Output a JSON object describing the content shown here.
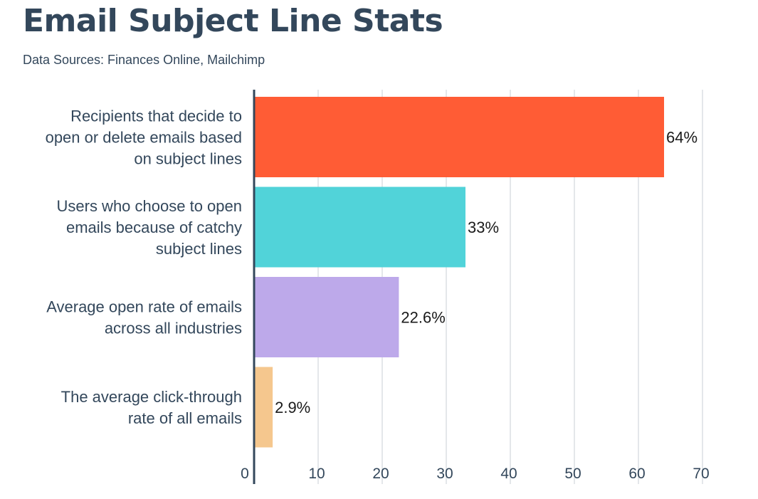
{
  "header": {
    "title": "Email Subject Line Stats",
    "subtitle": "Data Sources: Finances Online, Mailchimp"
  },
  "chart_data": {
    "type": "bar",
    "orientation": "horizontal",
    "title": "Email Subject Line Stats",
    "subtitle": "Data Sources: Finances Online, Mailchimp",
    "xlabel": "",
    "ylabel": "",
    "xlim": [
      0,
      70
    ],
    "ticks": [
      0,
      10,
      20,
      30,
      40,
      50,
      60,
      70
    ],
    "grid": true,
    "categories": [
      [
        "Recipients that decide to",
        "open or delete emails based",
        "on subject lines"
      ],
      [
        "Users who choose to open",
        "emails because of catchy",
        "subject lines"
      ],
      [
        "Average open rate of emails",
        "across all industries"
      ],
      [
        "The average click-through",
        "rate of all emails"
      ]
    ],
    "values": [
      64,
      33,
      22.6,
      2.9
    ],
    "value_labels": [
      "64%",
      "33%",
      "22.6%",
      "2.9%"
    ],
    "colors": [
      "#ff5c35",
      "#51d3d9",
      "#bda9ea",
      "#f5c78e"
    ]
  }
}
